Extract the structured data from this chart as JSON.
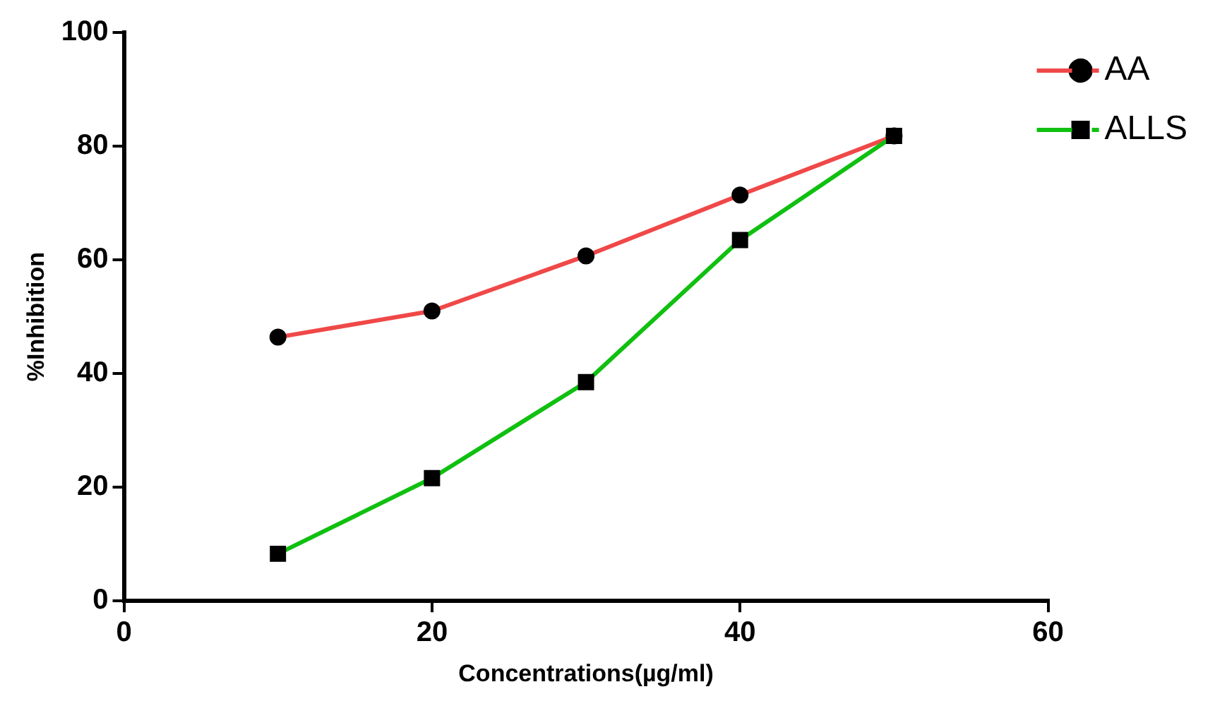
{
  "chart_data": {
    "type": "line",
    "xlabel": "Concentrations(µg/ml)",
    "ylabel": "%Inhibition",
    "x": [
      10,
      20,
      30,
      40,
      50
    ],
    "series": [
      {
        "name": "AA",
        "color": "#f04848",
        "values": [
          46.4,
          51.0,
          60.7,
          71.4,
          81.8
        ],
        "marker": "circle"
      },
      {
        "name": "ALLS",
        "color": "#10c010",
        "values": [
          8.3,
          21.6,
          38.5,
          63.5,
          81.8
        ],
        "marker": "square"
      }
    ],
    "xlim": [
      0,
      60
    ],
    "xticks": [
      0,
      20,
      40,
      60
    ],
    "ylim": [
      0,
      100
    ],
    "yticks": [
      0,
      20,
      40,
      60,
      80,
      100
    ],
    "grid": false,
    "legend": "top right",
    "line_style": "solid"
  }
}
